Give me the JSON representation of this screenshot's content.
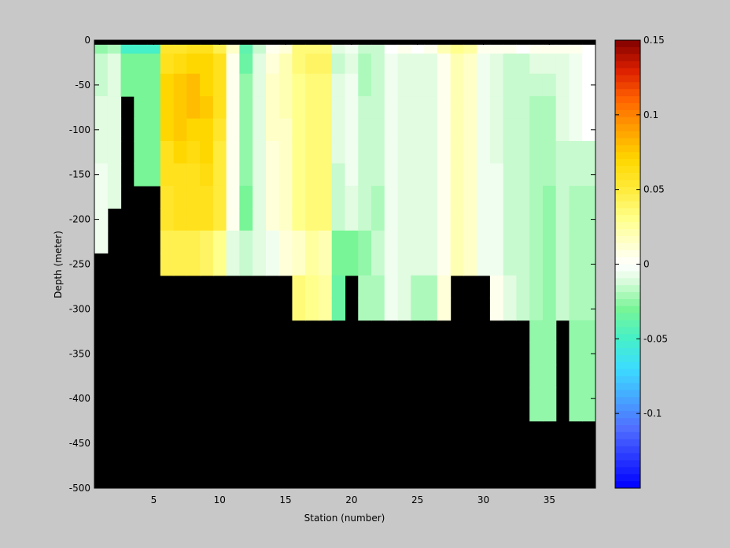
{
  "chart_data": {
    "type": "heatmap",
    "title": "",
    "xlabel": "Station (number)",
    "ylabel": "Depth (meter)",
    "xlim": [
      1,
      38
    ],
    "ylim": [
      -500,
      0
    ],
    "x_ticks": [
      5,
      10,
      15,
      20,
      25,
      30,
      35
    ],
    "y_ticks": [
      0,
      -50,
      -100,
      -150,
      -200,
      -250,
      -300,
      -350,
      -400,
      -450,
      -500
    ],
    "colorbar": {
      "range": [
        -0.15,
        0.15
      ],
      "ticks": [
        0.15,
        0.1,
        0.05,
        0,
        -0.05,
        -0.1
      ],
      "tick_labels": [
        "0.15",
        "0.1",
        "0.05",
        "0",
        "-0.05",
        "-0.1"
      ],
      "colormap": "jet-with-white-center"
    },
    "depth_levels": [
      -5,
      -25,
      -50,
      -75,
      -100,
      -125,
      -150,
      -175,
      -200,
      -225,
      -250,
      -275,
      -300,
      -325,
      -350,
      -375,
      -400,
      -450,
      -500
    ],
    "stations": [
      {
        "station": 1,
        "values": [
          -0.025,
          -0.015,
          -0.015,
          -0.01,
          -0.01,
          -0.01,
          -0.005,
          -0.005,
          -0.005,
          -0.005
        ]
      },
      {
        "station": 2,
        "values": [
          -0.02,
          -0.01,
          -0.01,
          -0.01,
          -0.01,
          -0.01,
          -0.01,
          -0.01
        ]
      },
      {
        "station": 3,
        "values": [
          -0.05,
          -0.03,
          -0.03
        ]
      },
      {
        "station": 4,
        "values": [
          -0.05,
          -0.03,
          -0.03,
          -0.03,
          -0.03,
          -0.03,
          -0.03
        ]
      },
      {
        "station": 5,
        "values": [
          -0.05,
          -0.03,
          -0.03,
          -0.03,
          -0.03,
          -0.03,
          -0.03
        ]
      },
      {
        "station": 6,
        "values": [
          0.055,
          0.06,
          0.07,
          0.07,
          0.07,
          0.06,
          0.06,
          0.055,
          0.055,
          0.045,
          0.045
        ]
      },
      {
        "station": 7,
        "values": [
          0.055,
          0.065,
          0.075,
          0.075,
          0.075,
          0.07,
          0.06,
          0.06,
          0.06,
          0.045,
          0.045
        ]
      },
      {
        "station": 8,
        "values": [
          0.06,
          0.07,
          0.08,
          0.08,
          0.07,
          0.065,
          0.06,
          0.06,
          0.06,
          0.045,
          0.045
        ]
      },
      {
        "station": 9,
        "values": [
          0.06,
          0.07,
          0.07,
          0.075,
          0.07,
          0.07,
          0.065,
          0.06,
          0.06,
          0.04,
          0.04
        ]
      },
      {
        "station": 10,
        "values": [
          0.045,
          0.06,
          0.06,
          0.06,
          0.055,
          0.05,
          0.05,
          0.05,
          0.05,
          0.03,
          0.03
        ]
      },
      {
        "station": 11,
        "values": [
          0.015,
          0.005,
          0.005,
          0.005,
          0.005,
          0.005,
          0.005,
          0.005,
          0.005,
          -0.01,
          -0.01
        ]
      },
      {
        "station": 12,
        "values": [
          -0.04,
          -0.035,
          -0.025,
          -0.025,
          -0.025,
          -0.025,
          -0.025,
          -0.03,
          -0.03,
          -0.015,
          -0.015
        ]
      },
      {
        "station": 13,
        "values": [
          -0.015,
          -0.01,
          -0.01,
          -0.01,
          -0.01,
          -0.01,
          -0.01,
          -0.01,
          -0.01,
          -0.01,
          -0.01
        ]
      },
      {
        "station": 14,
        "values": [
          0.005,
          0.01,
          0.015,
          0.015,
          0.015,
          0.01,
          0.01,
          0.01,
          0.01,
          -0.005,
          -0.005
        ]
      },
      {
        "station": 15,
        "values": [
          0.01,
          0.02,
          0.02,
          0.02,
          0.015,
          0.015,
          0.015,
          0.015,
          0.015,
          0.01,
          0.01
        ]
      },
      {
        "station": 16,
        "values": [
          0.035,
          0.035,
          0.03,
          0.03,
          0.03,
          0.03,
          0.03,
          0.03,
          0.03,
          0.015,
          0.015,
          0.035,
          0.035
        ]
      },
      {
        "station": 17,
        "values": [
          0.035,
          0.04,
          0.035,
          0.035,
          0.035,
          0.035,
          0.035,
          0.035,
          0.035,
          0.025,
          0.025,
          0.03,
          0.03
        ]
      },
      {
        "station": 18,
        "values": [
          0.035,
          0.04,
          0.035,
          0.035,
          0.035,
          0.035,
          0.035,
          0.035,
          0.035,
          0.02,
          0.02,
          0.025,
          0.025
        ]
      },
      {
        "station": 19,
        "values": [
          -0.01,
          -0.015,
          -0.01,
          -0.01,
          -0.01,
          -0.01,
          -0.015,
          -0.015,
          -0.015,
          -0.03,
          -0.03,
          -0.035,
          -0.035
        ]
      },
      {
        "station": 20,
        "values": [
          -0.005,
          -0.01,
          -0.005,
          -0.005,
          -0.005,
          -0.005,
          -0.005,
          -0.01,
          -0.01,
          -0.03,
          -0.03
        ]
      },
      {
        "station": 21,
        "values": [
          -0.015,
          -0.02,
          -0.02,
          -0.015,
          -0.015,
          -0.015,
          -0.015,
          -0.015,
          -0.015,
          -0.025,
          -0.025,
          -0.02,
          -0.02
        ]
      },
      {
        "station": 22,
        "values": [
          -0.015,
          -0.015,
          -0.015,
          -0.015,
          -0.015,
          -0.015,
          -0.015,
          -0.02,
          -0.02,
          -0.015,
          -0.015,
          -0.02,
          -0.02
        ]
      },
      {
        "station": 23,
        "values": [
          0.0,
          -0.005,
          -0.005,
          -0.005,
          -0.005,
          -0.005,
          -0.005,
          -0.005,
          -0.005,
          -0.005,
          -0.005,
          -0.005,
          -0.005
        ]
      },
      {
        "station": 24,
        "values": [
          0.005,
          -0.01,
          -0.01,
          -0.01,
          -0.01,
          -0.01,
          -0.01,
          -0.01,
          -0.01,
          -0.01,
          -0.01,
          -0.01,
          -0.01
        ]
      },
      {
        "station": 25,
        "values": [
          0.0,
          -0.01,
          -0.01,
          -0.01,
          -0.01,
          -0.01,
          -0.01,
          -0.01,
          -0.01,
          -0.01,
          -0.01,
          -0.02,
          -0.02
        ]
      },
      {
        "station": 26,
        "values": [
          0.005,
          -0.01,
          -0.01,
          -0.01,
          -0.01,
          -0.01,
          -0.01,
          -0.01,
          -0.01,
          -0.01,
          -0.01,
          -0.02,
          -0.02
        ]
      },
      {
        "station": 27,
        "values": [
          0.02,
          0.005,
          0.005,
          0.005,
          0.005,
          0.005,
          0.005,
          0.005,
          0.005,
          0.005,
          0.005,
          0.01,
          0.01
        ]
      },
      {
        "station": 28,
        "values": [
          0.03,
          0.02,
          0.02,
          0.02,
          0.02,
          0.02,
          0.02,
          0.02,
          0.02,
          0.02,
          0.02
        ]
      },
      {
        "station": 29,
        "values": [
          0.025,
          0.015,
          0.015,
          0.015,
          0.015,
          0.015,
          0.015,
          0.015,
          0.015,
          0.015,
          0.015
        ]
      },
      {
        "station": 30,
        "values": [
          0.005,
          -0.005,
          -0.005,
          -0.005,
          -0.005,
          -0.005,
          -0.005,
          -0.005,
          -0.005,
          -0.005,
          -0.005
        ]
      },
      {
        "station": 31,
        "values": [
          0.005,
          -0.01,
          -0.01,
          -0.01,
          -0.01,
          -0.01,
          -0.005,
          -0.005,
          -0.005,
          -0.005,
          -0.005,
          0.005,
          0.005
        ]
      },
      {
        "station": 32,
        "values": [
          0.005,
          -0.015,
          -0.015,
          -0.015,
          -0.015,
          -0.015,
          -0.015,
          -0.015,
          -0.015,
          -0.015,
          -0.015,
          -0.01,
          -0.01
        ]
      },
      {
        "station": 33,
        "values": [
          0.0,
          -0.015,
          -0.015,
          -0.015,
          -0.015,
          -0.015,
          -0.015,
          -0.015,
          -0.015,
          -0.015,
          -0.015,
          -0.015,
          -0.015
        ]
      },
      {
        "station": 34,
        "values": [
          0.005,
          -0.01,
          -0.015,
          -0.02,
          -0.02,
          -0.02,
          -0.02,
          -0.02,
          -0.02,
          -0.02,
          -0.02,
          -0.02,
          -0.02,
          -0.025,
          -0.025,
          -0.025,
          -0.025
        ]
      },
      {
        "station": 35,
        "values": [
          0.005,
          -0.01,
          -0.015,
          -0.02,
          -0.02,
          -0.02,
          -0.02,
          -0.025,
          -0.025,
          -0.025,
          -0.025,
          -0.025,
          -0.025,
          -0.025,
          -0.025,
          -0.025,
          -0.025
        ]
      },
      {
        "station": 36,
        "values": [
          0.005,
          -0.01,
          -0.01,
          -0.01,
          -0.01,
          -0.015,
          -0.015,
          -0.015,
          -0.015,
          -0.015,
          -0.015,
          -0.015,
          -0.015
        ]
      },
      {
        "station": 37,
        "values": [
          0.005,
          -0.005,
          -0.005,
          -0.005,
          -0.005,
          -0.015,
          -0.015,
          -0.02,
          -0.02,
          -0.02,
          -0.02,
          -0.02,
          -0.02,
          -0.025,
          -0.025,
          -0.025,
          -0.025
        ]
      },
      {
        "station": 38,
        "values": [
          0.0,
          0.0,
          0.0,
          0.0,
          0.0,
          -0.015,
          -0.015,
          -0.02,
          -0.02,
          -0.02,
          -0.02,
          -0.02,
          -0.02,
          -0.025,
          -0.025,
          -0.025,
          -0.025
        ]
      }
    ],
    "mask_color": "#000000",
    "background_color": "#c8c8c8"
  }
}
